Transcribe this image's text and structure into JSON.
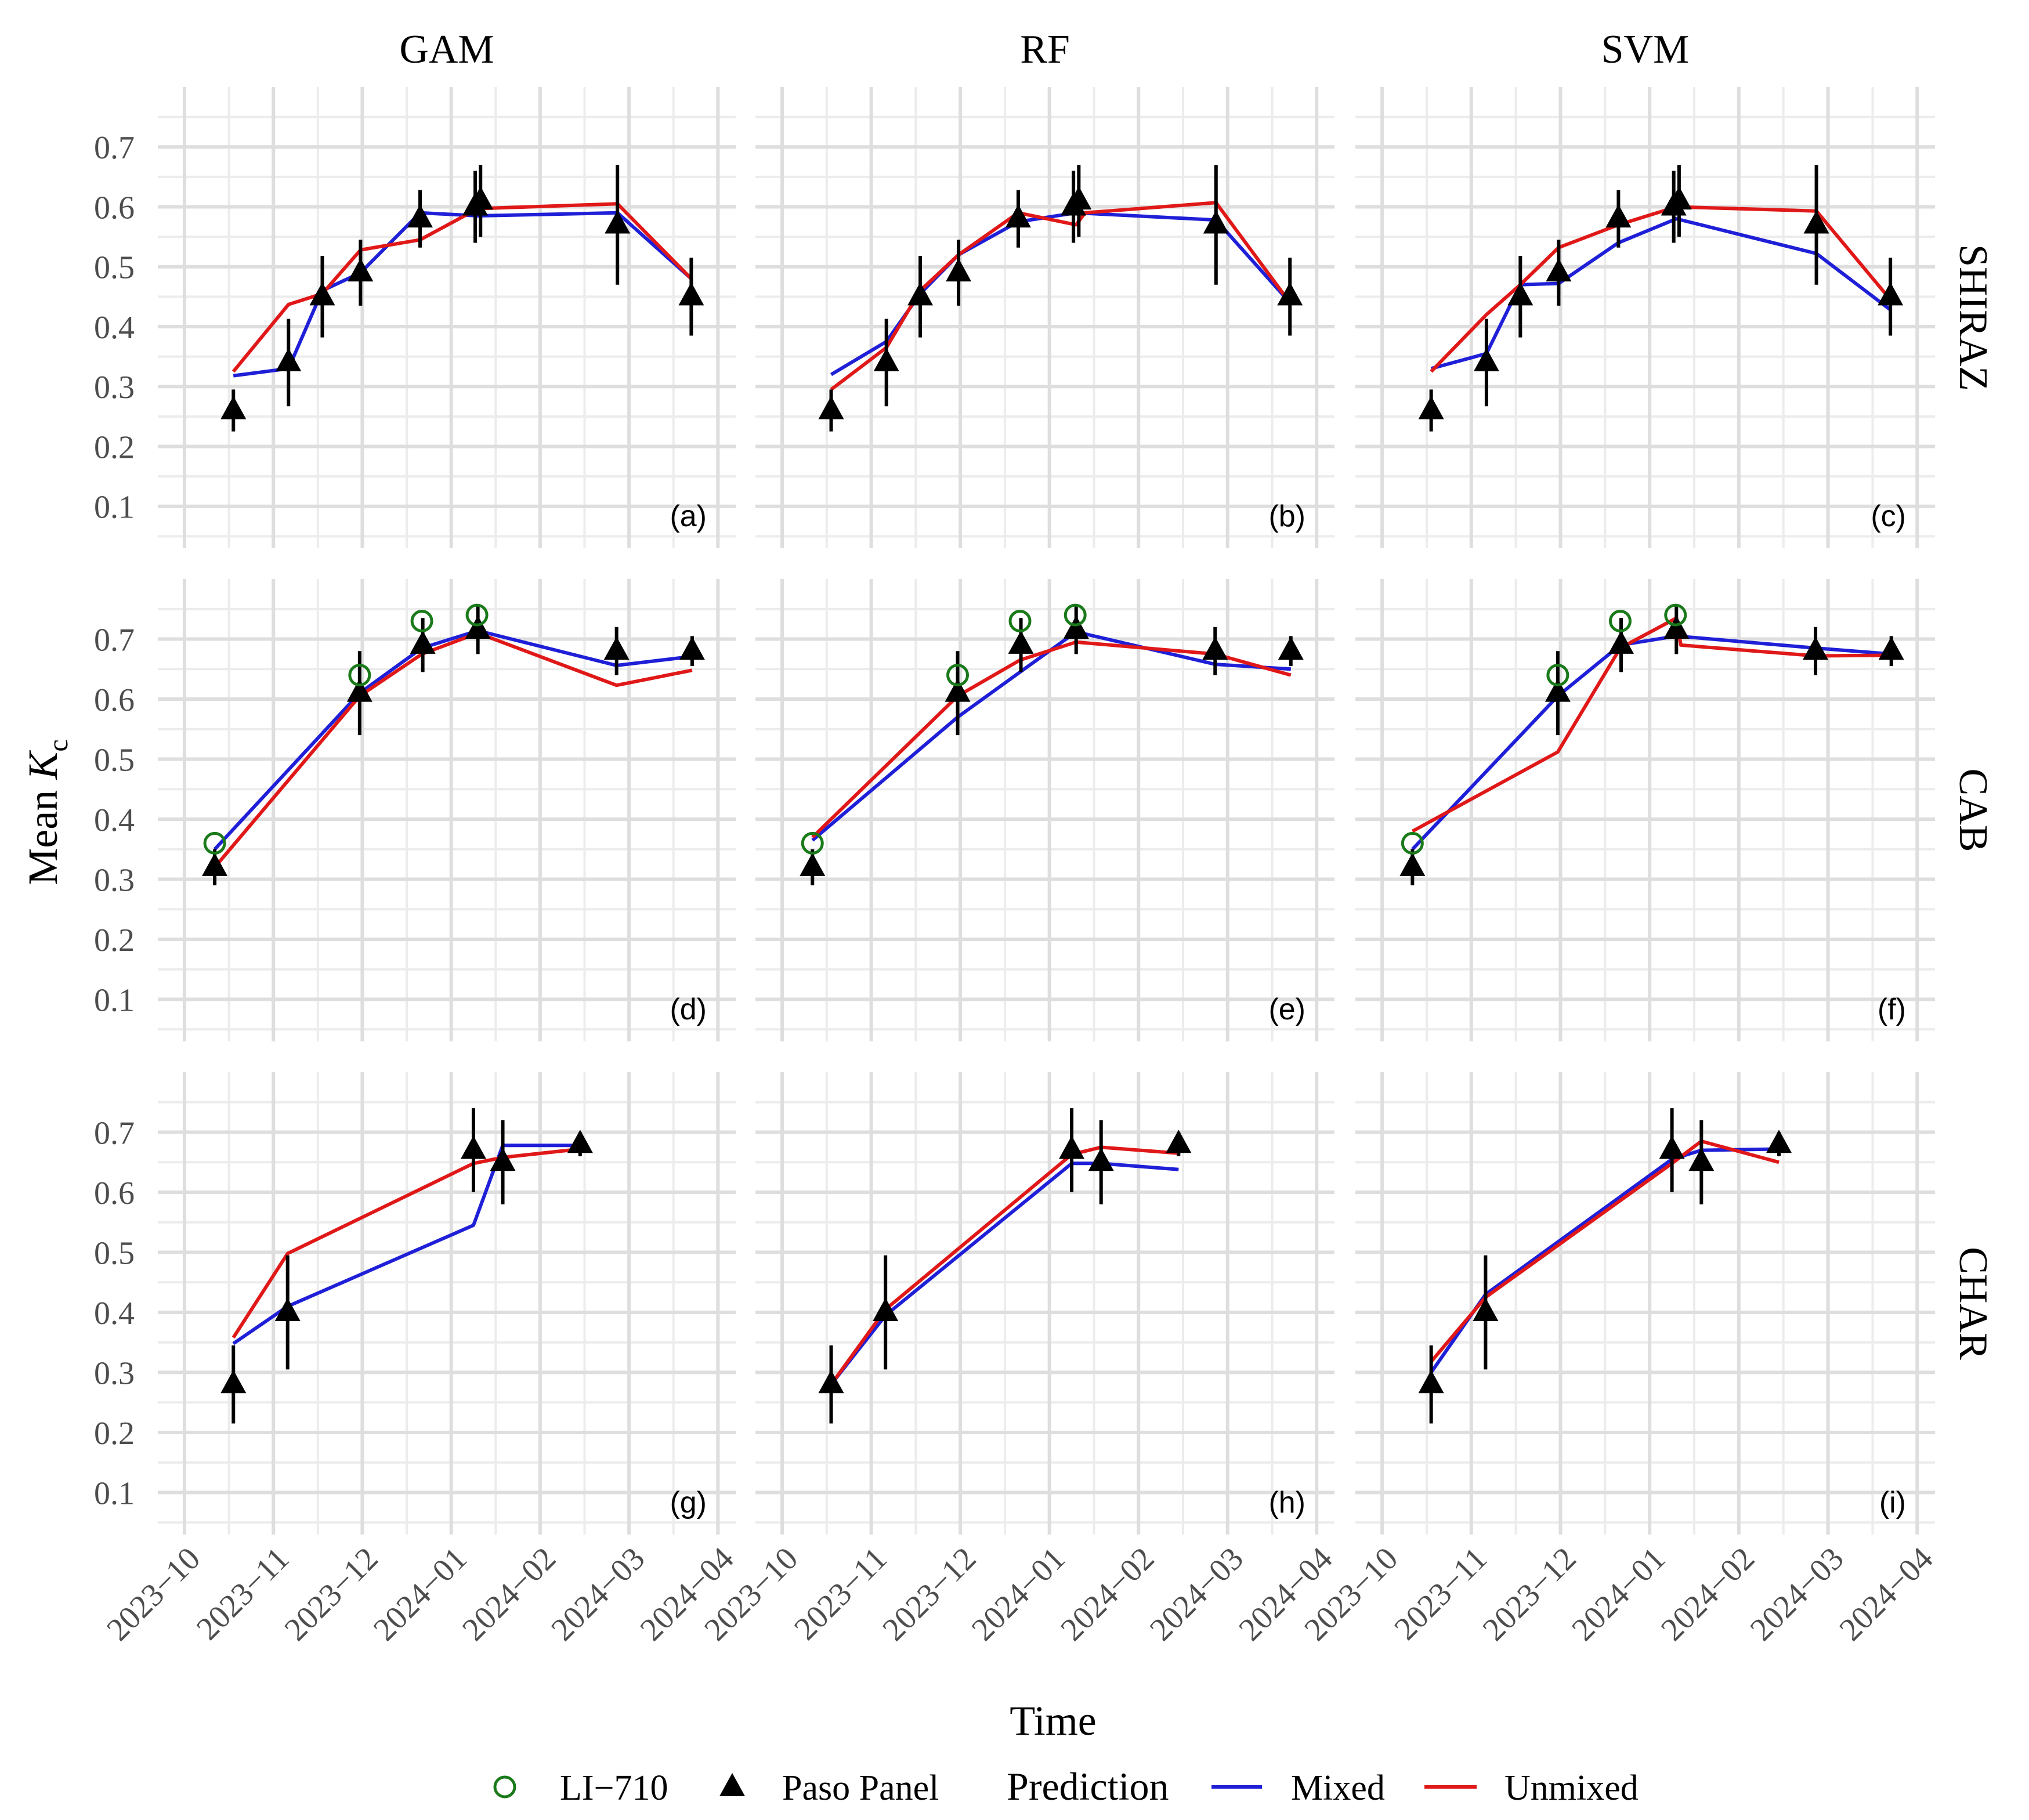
{
  "chart_data": {
    "type": "line",
    "ylabel": "Mean",
    "ylabel_symbol": "K",
    "ylabel_subscript": "c",
    "xlabel": "Time",
    "column_titles": [
      "GAM",
      "RF",
      "SVM"
    ],
    "row_titles": [
      "SHIRAZ",
      "CAB",
      "CHAR"
    ],
    "panel_tags": [
      [
        "(a)",
        "(b)",
        "(c)"
      ],
      [
        "(d)",
        "(e)",
        "(f)"
      ],
      [
        "(g)",
        "(h)",
        "(i)"
      ]
    ],
    "ylim": [
      0.03,
      0.8
    ],
    "y_ticks": [
      "0.1",
      "0.2",
      "0.3",
      "0.4",
      "0.5",
      "0.6",
      "0.7"
    ],
    "xlim": [
      -0.3,
      6.2
    ],
    "x_ticks": [
      "2023−10",
      "2023−11",
      "2023−12",
      "2024−01",
      "2024−02",
      "2024−03",
      "2024−04"
    ],
    "grid": true,
    "legend": {
      "position": "bottom",
      "items": [
        {
          "label": "LI−710",
          "marker": "open-circle",
          "color": "#1a7a1a"
        },
        {
          "label": "Paso Panel",
          "marker": "triangle",
          "color": "#000000"
        }
      ],
      "prediction_title": "Prediction",
      "series": [
        {
          "label": "Mixed",
          "color": "#1f1fd8"
        },
        {
          "label": "Unmixed",
          "color": "#e01818"
        }
      ]
    },
    "observations": {
      "SHIRAZ": {
        "paso": [
          {
            "x": 0.55,
            "y": 0.26,
            "err": 0.035
          },
          {
            "x": 1.17,
            "y": 0.34,
            "err": 0.073
          },
          {
            "x": 1.55,
            "y": 0.45,
            "err": 0.068
          },
          {
            "x": 1.98,
            "y": 0.49,
            "err": 0.055
          },
          {
            "x": 2.65,
            "y": 0.58,
            "err": 0.048
          },
          {
            "x": 3.27,
            "y": 0.6,
            "err": 0.06
          },
          {
            "x": 3.33,
            "y": 0.61,
            "err": 0.06
          },
          {
            "x": 4.87,
            "y": 0.57,
            "err": 0.1
          },
          {
            "x": 5.7,
            "y": 0.45,
            "err": 0.065
          }
        ],
        "li710": []
      },
      "CAB": {
        "paso": [
          {
            "x": 0.34,
            "y": 0.32,
            "err": 0.03
          },
          {
            "x": 1.97,
            "y": 0.61,
            "err": 0.07
          },
          {
            "x": 2.68,
            "y": 0.69,
            "err": 0.045
          },
          {
            "x": 3.3,
            "y": 0.715,
            "err": 0.04
          },
          {
            "x": 4.86,
            "y": 0.68,
            "err": 0.04
          },
          {
            "x": 5.71,
            "y": 0.68,
            "err": 0.025
          }
        ],
        "li710": [
          {
            "x": 0.34,
            "y": 0.36
          },
          {
            "x": 1.97,
            "y": 0.64
          },
          {
            "x": 2.67,
            "y": 0.73
          },
          {
            "x": 3.29,
            "y": 0.74
          }
        ]
      },
      "CHAR": {
        "paso": [
          {
            "x": 0.55,
            "y": 0.28,
            "err": 0.065
          },
          {
            "x": 1.16,
            "y": 0.4,
            "err": 0.095
          },
          {
            "x": 3.25,
            "y": 0.67,
            "err": 0.07
          },
          {
            "x": 3.58,
            "y": 0.65,
            "err": 0.07
          },
          {
            "x": 4.45,
            "y": 0.68,
            "err": 0.02
          }
        ],
        "li710": []
      }
    },
    "predictions": {
      "SHIRAZ": {
        "GAM": {
          "Mixed": [
            [
              0.55,
              0.318
            ],
            [
              1.17,
              0.33
            ],
            [
              1.55,
              0.46
            ],
            [
              1.98,
              0.49
            ],
            [
              2.65,
              0.59
            ],
            [
              3.3,
              0.585
            ],
            [
              4.87,
              0.59
            ],
            [
              5.7,
              0.48
            ]
          ],
          "Unmixed": [
            [
              0.55,
              0.325
            ],
            [
              1.17,
              0.437
            ],
            [
              1.55,
              0.455
            ],
            [
              1.98,
              0.528
            ],
            [
              2.65,
              0.545
            ],
            [
              3.3,
              0.597
            ],
            [
              4.87,
              0.605
            ],
            [
              5.7,
              0.48
            ]
          ]
        },
        "RF": {
          "Mixed": [
            [
              0.55,
              0.32
            ],
            [
              1.17,
              0.375
            ],
            [
              1.55,
              0.455
            ],
            [
              1.98,
              0.52
            ],
            [
              2.65,
              0.575
            ],
            [
              3.3,
              0.59
            ],
            [
              4.87,
              0.578
            ],
            [
              5.7,
              0.44
            ]
          ],
          "Unmixed": [
            [
              0.55,
              0.295
            ],
            [
              1.17,
              0.365
            ],
            [
              1.55,
              0.46
            ],
            [
              1.98,
              0.52
            ],
            [
              2.65,
              0.59
            ],
            [
              3.3,
              0.57
            ],
            [
              3.4,
              0.59
            ],
            [
              4.87,
              0.607
            ],
            [
              5.7,
              0.44
            ]
          ]
        },
        "SVM": {
          "Mixed": [
            [
              0.55,
              0.33
            ],
            [
              1.17,
              0.355
            ],
            [
              1.55,
              0.47
            ],
            [
              1.98,
              0.472
            ],
            [
              2.65,
              0.54
            ],
            [
              3.3,
              0.58
            ],
            [
              4.87,
              0.522
            ],
            [
              5.7,
              0.428
            ]
          ],
          "Unmixed": [
            [
              0.55,
              0.325
            ],
            [
              1.17,
              0.42
            ],
            [
              1.55,
              0.47
            ],
            [
              1.98,
              0.532
            ],
            [
              2.65,
              0.57
            ],
            [
              3.3,
              0.6
            ],
            [
              4.87,
              0.593
            ],
            [
              5.7,
              0.445
            ]
          ]
        }
      },
      "CAB": {
        "GAM": {
          "Mixed": [
            [
              0.34,
              0.35
            ],
            [
              1.97,
              0.61
            ],
            [
              2.67,
              0.685
            ],
            [
              3.3,
              0.714
            ],
            [
              4.86,
              0.656
            ],
            [
              5.71,
              0.671
            ]
          ],
          "Unmixed": [
            [
              0.34,
              0.32
            ],
            [
              1.97,
              0.605
            ],
            [
              2.67,
              0.675
            ],
            [
              3.3,
              0.71
            ],
            [
              4.86,
              0.623
            ],
            [
              5.71,
              0.648
            ]
          ]
        },
        "RF": {
          "Mixed": [
            [
              0.34,
              0.365
            ],
            [
              1.97,
              0.57
            ],
            [
              2.67,
              0.645
            ],
            [
              3.3,
              0.712
            ],
            [
              4.86,
              0.658
            ],
            [
              5.71,
              0.65
            ]
          ],
          "Unmixed": [
            [
              0.34,
              0.37
            ],
            [
              1.97,
              0.605
            ],
            [
              2.67,
              0.665
            ],
            [
              3.3,
              0.695
            ],
            [
              4.86,
              0.675
            ],
            [
              5.71,
              0.64
            ]
          ]
        },
        "SVM": {
          "Mixed": [
            [
              0.34,
              0.35
            ],
            [
              1.97,
              0.605
            ],
            [
              2.67,
              0.69
            ],
            [
              3.3,
              0.705
            ],
            [
              4.86,
              0.685
            ],
            [
              5.71,
              0.675
            ]
          ],
          "Unmixed": [
            [
              0.34,
              0.38
            ],
            [
              1.97,
              0.512
            ],
            [
              2.67,
              0.685
            ],
            [
              3.3,
              0.735
            ],
            [
              3.35,
              0.69
            ],
            [
              4.86,
              0.672
            ],
            [
              5.71,
              0.673
            ]
          ]
        }
      },
      "CHAR": {
        "GAM": {
          "Mixed": [
            [
              0.55,
              0.348
            ],
            [
              1.16,
              0.41
            ],
            [
              3.25,
              0.545
            ],
            [
              3.58,
              0.678
            ],
            [
              4.45,
              0.678
            ]
          ],
          "Unmixed": [
            [
              0.55,
              0.358
            ],
            [
              1.16,
              0.498
            ],
            [
              3.25,
              0.648
            ],
            [
              3.58,
              0.658
            ],
            [
              4.45,
              0.672
            ]
          ]
        },
        "RF": {
          "Mixed": [
            [
              0.55,
              0.28
            ],
            [
              1.16,
              0.395
            ],
            [
              3.25,
              0.648
            ],
            [
              3.58,
              0.648
            ],
            [
              4.45,
              0.638
            ]
          ],
          "Unmixed": [
            [
              0.55,
              0.28
            ],
            [
              1.16,
              0.405
            ],
            [
              3.25,
              0.663
            ],
            [
              3.58,
              0.675
            ],
            [
              4.45,
              0.665
            ]
          ]
        },
        "SVM": {
          "Mixed": [
            [
              0.55,
              0.3
            ],
            [
              1.16,
              0.43
            ],
            [
              3.25,
              0.655
            ],
            [
              3.58,
              0.67
            ],
            [
              4.45,
              0.672
            ]
          ],
          "Unmixed": [
            [
              0.55,
              0.318
            ],
            [
              1.16,
              0.425
            ],
            [
              3.25,
              0.648
            ],
            [
              3.58,
              0.685
            ],
            [
              4.45,
              0.65
            ]
          ]
        }
      }
    }
  }
}
